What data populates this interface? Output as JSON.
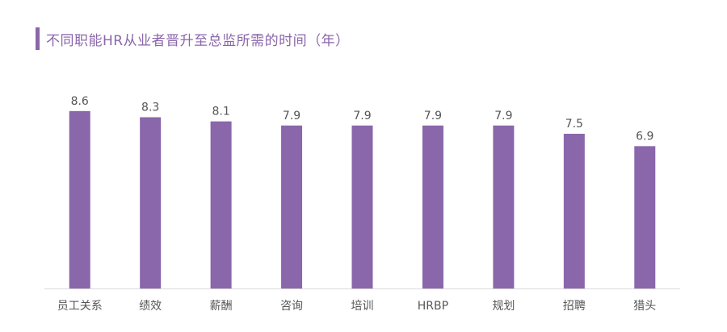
{
  "title": "不同职能HR从业者晋升至总监所需的时间（年）",
  "colors": {
    "bar": "#8a66aa",
    "accent": "#8a66aa",
    "axis": "#d9d9d9",
    "text": "#555555"
  },
  "chart_data": {
    "type": "bar",
    "title": "不同职能HR从业者晋升至总监所需的时间（年）",
    "categories": [
      "员工关系",
      "绩效",
      "薪酬",
      "咨询",
      "培训",
      "HRBP",
      "规划",
      "招聘",
      "猎头"
    ],
    "values": [
      8.6,
      8.3,
      8.1,
      7.9,
      7.9,
      7.9,
      7.9,
      7.5,
      6.9
    ],
    "value_labels": [
      "8.6",
      "8.3",
      "8.1",
      "7.9",
      "7.9",
      "7.9",
      "7.9",
      "7.5",
      "6.9"
    ],
    "xlabel": "",
    "ylabel": "",
    "ylim": [
      0,
      10
    ],
    "grid": false,
    "legend": "none"
  }
}
